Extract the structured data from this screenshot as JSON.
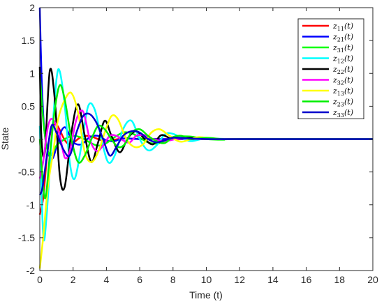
{
  "chart_data": {
    "type": "line",
    "xlabel": "Time (t)",
    "ylabel": "State",
    "xlim": [
      0,
      20
    ],
    "ylim": [
      -2,
      2
    ],
    "x_ticks": [
      "0",
      "2",
      "4",
      "6",
      "8",
      "10",
      "12",
      "14",
      "16",
      "18",
      "20"
    ],
    "y_ticks": [
      "-2",
      "-1.5",
      "-1",
      "-0.5",
      "0",
      "0.5",
      "1",
      "1.5",
      "2"
    ],
    "grid": false,
    "legend_position": "top-right",
    "series": [
      {
        "name": "z11(t)",
        "base": "z",
        "sub": "11",
        "suffix": "(t)",
        "color": "#ff0000",
        "x": [
          0,
          0.2,
          0.4,
          0.6,
          0.8,
          1.0,
          1.2,
          1.4,
          1.6,
          1.8,
          2.0,
          2.4,
          2.8,
          3.2,
          3.6,
          4.0,
          4.5,
          5.0,
          6.0,
          7.0,
          8.0,
          10.0,
          20.0
        ],
        "y": [
          -1.15,
          -0.9,
          -0.35,
          0.05,
          0.2,
          0.22,
          0.14,
          0.03,
          -0.05,
          -0.08,
          -0.06,
          0.02,
          0.05,
          0.03,
          -0.01,
          -0.03,
          -0.01,
          0.01,
          0.0,
          0.0,
          0.0,
          0.0,
          0.0
        ]
      },
      {
        "name": "z21(t)",
        "base": "z",
        "sub": "21",
        "suffix": "(t)",
        "color": "#0000ff",
        "x": [
          0,
          0.1,
          0.25,
          0.5,
          0.75,
          1.0,
          1.25,
          1.5,
          1.75,
          2.0,
          2.5,
          3.0,
          3.5,
          4.0,
          4.5,
          5.0,
          6.0,
          7.0,
          8.0,
          10.0,
          20.0
        ],
        "y": [
          2.0,
          1.0,
          0.2,
          -0.2,
          -0.3,
          -0.12,
          0.1,
          0.18,
          0.08,
          -0.05,
          -0.08,
          0.03,
          0.05,
          -0.02,
          -0.03,
          0.01,
          0.0,
          0.0,
          0.0,
          0.0,
          0.0
        ]
      },
      {
        "name": "z31(t)",
        "base": "z",
        "sub": "31",
        "suffix": "(t)",
        "color": "#00ff00",
        "x": [
          0,
          0.2,
          0.4,
          0.6,
          0.8,
          1.0,
          1.5,
          2.0,
          2.5,
          3.0,
          3.5,
          4.0,
          4.5,
          5.0,
          5.5,
          6.0,
          6.5,
          7.0,
          7.5,
          8.0,
          9.0,
          10.0,
          11.0,
          12.0,
          20.0
        ],
        "y": [
          1.0,
          0.3,
          -0.1,
          -0.25,
          -0.2,
          -0.1,
          0.0,
          0.05,
          0.02,
          -0.05,
          -0.1,
          -0.06,
          0.03,
          0.1,
          0.09,
          0.02,
          -0.05,
          -0.07,
          -0.03,
          0.03,
          0.04,
          0.0,
          -0.01,
          0.0,
          0.0
        ]
      },
      {
        "name": "z12(t)",
        "base": "z",
        "sub": "12",
        "suffix": "(t)",
        "color": "#00ffff",
        "x": [
          0,
          0.2,
          0.4,
          0.7,
          1.0,
          1.2,
          1.5,
          1.8,
          2.1,
          2.5,
          2.9,
          3.3,
          3.7,
          4.1,
          4.5,
          5.0,
          5.5,
          6.0,
          6.5,
          7.0,
          7.5,
          8.0,
          9.0,
          10.0,
          12.0,
          20.0
        ],
        "y": [
          0.2,
          -1.45,
          -1.2,
          -0.05,
          0.9,
          1.03,
          0.5,
          -0.35,
          -0.6,
          -0.1,
          0.5,
          0.45,
          0.0,
          -0.35,
          -0.25,
          0.15,
          0.28,
          0.0,
          -0.17,
          -0.1,
          0.07,
          0.08,
          -0.03,
          0.01,
          0.0,
          0.0
        ]
      },
      {
        "name": "z22(t)",
        "base": "z",
        "sub": "22",
        "suffix": "(t)",
        "color": "#000000",
        "x": [
          0,
          0.1,
          0.3,
          0.6,
          0.9,
          1.2,
          1.5,
          1.9,
          2.3,
          2.7,
          3.1,
          3.5,
          3.9,
          4.3,
          4.8,
          5.3,
          5.8,
          6.3,
          6.8,
          7.3,
          8.0,
          9.0,
          10.0,
          12.0,
          20.0
        ],
        "y": [
          1.1,
          0.0,
          -0.2,
          1.04,
          0.6,
          -0.55,
          -0.72,
          0.1,
          0.53,
          0.05,
          -0.35,
          -0.05,
          0.28,
          0.05,
          -0.2,
          0.02,
          0.12,
          0.0,
          -0.08,
          0.06,
          0.0,
          0.02,
          0.0,
          0.0,
          0.0
        ]
      },
      {
        "name": "z32(t)",
        "base": "z",
        "sub": "32",
        "suffix": "(t)",
        "color": "#ff00ff",
        "x": [
          0,
          0.2,
          0.5,
          0.8,
          1.2,
          1.5,
          1.8,
          2.2,
          2.6,
          3.0,
          3.4,
          3.8,
          4.2,
          4.6,
          5.0,
          5.4,
          5.8,
          6.3,
          6.8,
          7.5,
          8.5,
          10.0,
          20.0
        ],
        "y": [
          -0.6,
          -0.35,
          0.2,
          0.3,
          0.05,
          -0.28,
          -0.18,
          0.3,
          0.42,
          0.0,
          -0.18,
          -0.1,
          0.05,
          0.05,
          -0.02,
          -0.05,
          0.05,
          0.06,
          0.0,
          -0.03,
          0.01,
          0.0,
          0.0
        ]
      },
      {
        "name": "z13(t)",
        "base": "z",
        "sub": "13",
        "suffix": "(t)",
        "color": "#ffff00",
        "x": [
          0,
          0.2,
          0.5,
          0.8,
          1.1,
          1.5,
          1.9,
          2.3,
          2.7,
          3.1,
          3.5,
          3.9,
          4.3,
          4.7,
          5.2,
          5.7,
          6.2,
          6.7,
          7.2,
          7.8,
          8.5,
          9.5,
          10.5,
          12.0,
          20.0
        ],
        "y": [
          -1.97,
          -1.5,
          -0.7,
          -0.2,
          0.3,
          0.6,
          0.7,
          0.4,
          -0.2,
          -0.35,
          -0.2,
          0.1,
          0.35,
          0.3,
          0.0,
          -0.12,
          -0.08,
          0.1,
          0.15,
          0.05,
          -0.04,
          0.03,
          0.0,
          0.0,
          0.0
        ]
      },
      {
        "name": "z23(t)",
        "base": "z",
        "sub": "23",
        "suffix": "(t)",
        "color": "#00ee00",
        "x": [
          0,
          0.3,
          0.6,
          0.9,
          1.2,
          1.5,
          1.9,
          2.3,
          2.7,
          3.1,
          3.5,
          3.9,
          4.3,
          4.7,
          5.1,
          5.5,
          6.0,
          6.5,
          7.0,
          7.5,
          8.0,
          8.5,
          9.0,
          10.0,
          11.0,
          12.0,
          20.0
        ],
        "y": [
          0.0,
          -0.9,
          -0.25,
          0.45,
          0.82,
          0.6,
          0.0,
          -0.35,
          -0.25,
          0.0,
          0.2,
          0.15,
          0.0,
          -0.12,
          -0.08,
          0.1,
          0.15,
          0.05,
          -0.03,
          -0.06,
          0.03,
          0.05,
          0.0,
          0.02,
          0.0,
          0.0,
          0.0
        ]
      },
      {
        "name": "z33(t)",
        "base": "z",
        "sub": "33",
        "suffix": "(t)",
        "color": "#0000cc",
        "x": [
          0,
          0.15,
          0.4,
          0.7,
          1.0,
          1.4,
          1.8,
          2.2,
          2.6,
          3.0,
          3.4,
          3.8,
          4.2,
          4.6,
          5.0,
          5.5,
          6.0,
          6.5,
          7.0,
          7.5,
          8.0,
          9.0,
          10.0,
          12.0,
          20.0
        ],
        "y": [
          -0.85,
          -0.75,
          -0.3,
          0.2,
          0.1,
          -0.15,
          -0.25,
          0.1,
          0.35,
          0.38,
          0.25,
          0.0,
          -0.25,
          -0.12,
          0.05,
          0.12,
          0.1,
          0.0,
          -0.05,
          -0.02,
          0.02,
          0.01,
          0.0,
          0.0,
          0.0
        ]
      }
    ]
  }
}
